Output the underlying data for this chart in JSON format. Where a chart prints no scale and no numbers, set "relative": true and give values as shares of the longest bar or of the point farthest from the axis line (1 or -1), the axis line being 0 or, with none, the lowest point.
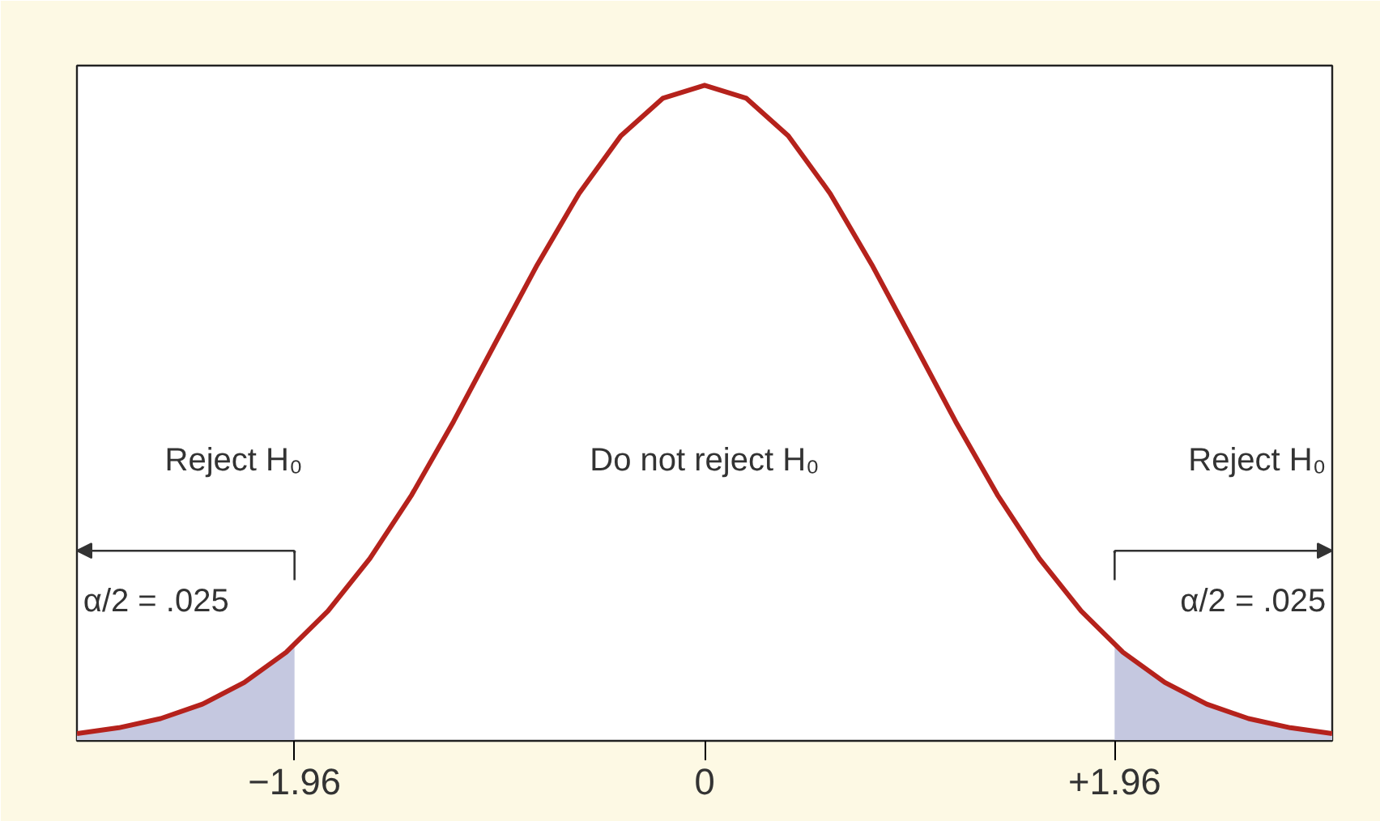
{
  "chart_data": {
    "type": "line",
    "relative": true,
    "xlim": [
      -3,
      3
    ],
    "xticks": [
      {
        "value": -1.96,
        "label": "−1.96"
      },
      0,
      {
        "value": 1.96,
        "label": "+1.96"
      }
    ],
    "grid": false,
    "series": [
      {
        "type": "area",
        "color": "#c5c8e0",
        "x": [
          -3,
          -2.8,
          -2.6,
          -2.4,
          -2.2,
          -2.0,
          -1.96
        ],
        "values": [
          0.011,
          0.02,
          0.034,
          0.056,
          0.089,
          0.135,
          0.146
        ]
      },
      {
        "type": "area",
        "color": "#c5c8e0",
        "x": [
          1.96,
          2.0,
          2.2,
          2.4,
          2.6,
          2.8,
          3
        ],
        "values": [
          0.146,
          0.135,
          0.089,
          0.056,
          0.034,
          0.02,
          0.011
        ]
      },
      {
        "color": "#b5221c",
        "x": [
          -3,
          -2.8,
          -2.6,
          -2.4,
          -2.2,
          -2.0,
          -1.8,
          -1.6,
          -1.4,
          -1.2,
          -1.0,
          -0.8,
          -0.6,
          -0.4,
          -0.2,
          0,
          0.2,
          0.4,
          0.6,
          0.8,
          1.0,
          1.2,
          1.4,
          1.6,
          1.8,
          2.0,
          2.2,
          2.4,
          2.6,
          2.8,
          3
        ],
        "values": [
          0.011,
          0.02,
          0.034,
          0.056,
          0.089,
          0.135,
          0.198,
          0.278,
          0.375,
          0.487,
          0.607,
          0.726,
          0.835,
          0.923,
          0.98,
          1,
          0.98,
          0.923,
          0.835,
          0.726,
          0.607,
          0.487,
          0.375,
          0.278,
          0.198,
          0.135,
          0.089,
          0.056,
          0.034,
          0.02,
          0.011
        ]
      }
    ],
    "annotations": [
      "Reject H₀",
      "α/2 = .025",
      "Do not reject H₀",
      "Reject H₀",
      "α/2 = .025"
    ]
  }
}
